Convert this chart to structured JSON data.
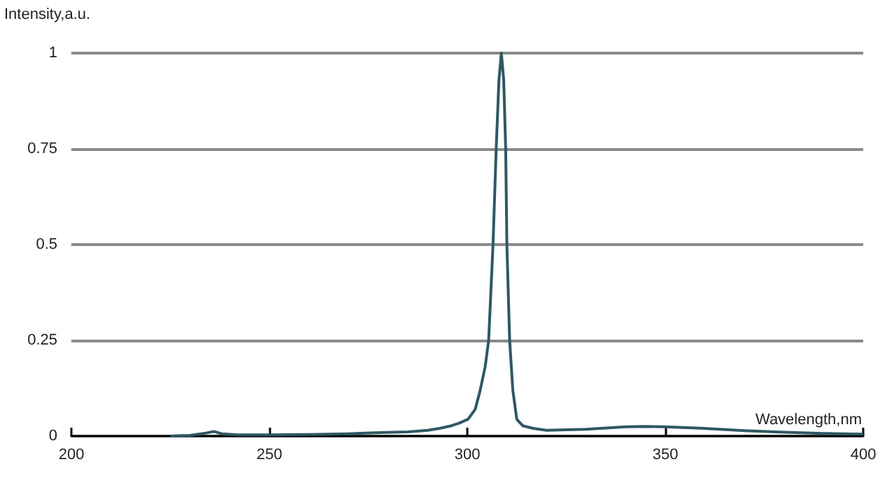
{
  "chart_data": {
    "type": "line",
    "xlabel": "Wavelength,nm",
    "ylabel": "Intensity,a.u.",
    "x": [
      225,
      230,
      234,
      236,
      238,
      242,
      250,
      260,
      270,
      278,
      285,
      290,
      293,
      296,
      298,
      300.2,
      302,
      303.2,
      304.5,
      305.4,
      306.5,
      307.3,
      308,
      308.6,
      309.2,
      309.7,
      310,
      310.7,
      311.5,
      312.5,
      314,
      316.7,
      320,
      330,
      340,
      345,
      350,
      360,
      370,
      380,
      390,
      400
    ],
    "series": [
      {
        "color": "#2e5962",
        "values": [
          0,
          0.002,
          0.008,
          0.012,
          0.006,
          0.003,
          0.003,
          0.004,
          0.006,
          0.009,
          0.011,
          0.015,
          0.02,
          0.027,
          0.034,
          0.044,
          0.07,
          0.117,
          0.18,
          0.25,
          0.5,
          0.75,
          0.93,
          1,
          0.93,
          0.75,
          0.5,
          0.25,
          0.12,
          0.044,
          0.027,
          0.02,
          0.015,
          0.018,
          0.024,
          0.025,
          0.024,
          0.02,
          0.014,
          0.01,
          0.007,
          0.005
        ]
      }
    ],
    "xlim": [
      200,
      400
    ],
    "xticks": [
      200,
      250,
      300,
      350,
      400
    ],
    "ylim": [
      0,
      1
    ],
    "yticks": [
      0,
      0.25,
      0.5,
      0.75,
      1
    ],
    "grid": "y",
    "marker": "none",
    "line_style": "solid"
  }
}
